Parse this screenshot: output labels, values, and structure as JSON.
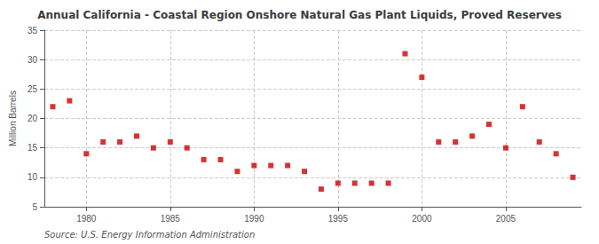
{
  "chart_data": {
    "type": "scatter",
    "title": "Annual California - Coastal Region Onshore Natural Gas Plant Liquids, Proved Reserves",
    "ylabel": "Million Barrels",
    "source": "Source: U.S. Energy Information Administration",
    "x": [
      1978,
      1979,
      1980,
      1981,
      1982,
      1983,
      1984,
      1985,
      1986,
      1987,
      1988,
      1989,
      1990,
      1991,
      1992,
      1993,
      1994,
      1995,
      1996,
      1997,
      1998,
      1999,
      2000,
      2001,
      2002,
      2003,
      2004,
      2005,
      2006,
      2007,
      2008,
      2009
    ],
    "values": [
      22,
      23,
      14,
      16,
      16,
      17,
      15,
      16,
      15,
      13,
      13,
      11,
      12,
      12,
      12,
      11,
      8,
      9,
      9,
      9,
      9,
      31,
      27,
      16,
      16,
      17,
      19,
      15,
      22,
      16,
      14,
      10
    ],
    "color": "#cc0000",
    "marker": "square",
    "xlim": [
      1977.5,
      2009.5
    ],
    "ylim": [
      5,
      35
    ],
    "xticks": [
      1980,
      1985,
      1990,
      1995,
      2000,
      2005
    ],
    "yticks": [
      5,
      10,
      15,
      20,
      25,
      30,
      35
    ],
    "grid": true
  }
}
